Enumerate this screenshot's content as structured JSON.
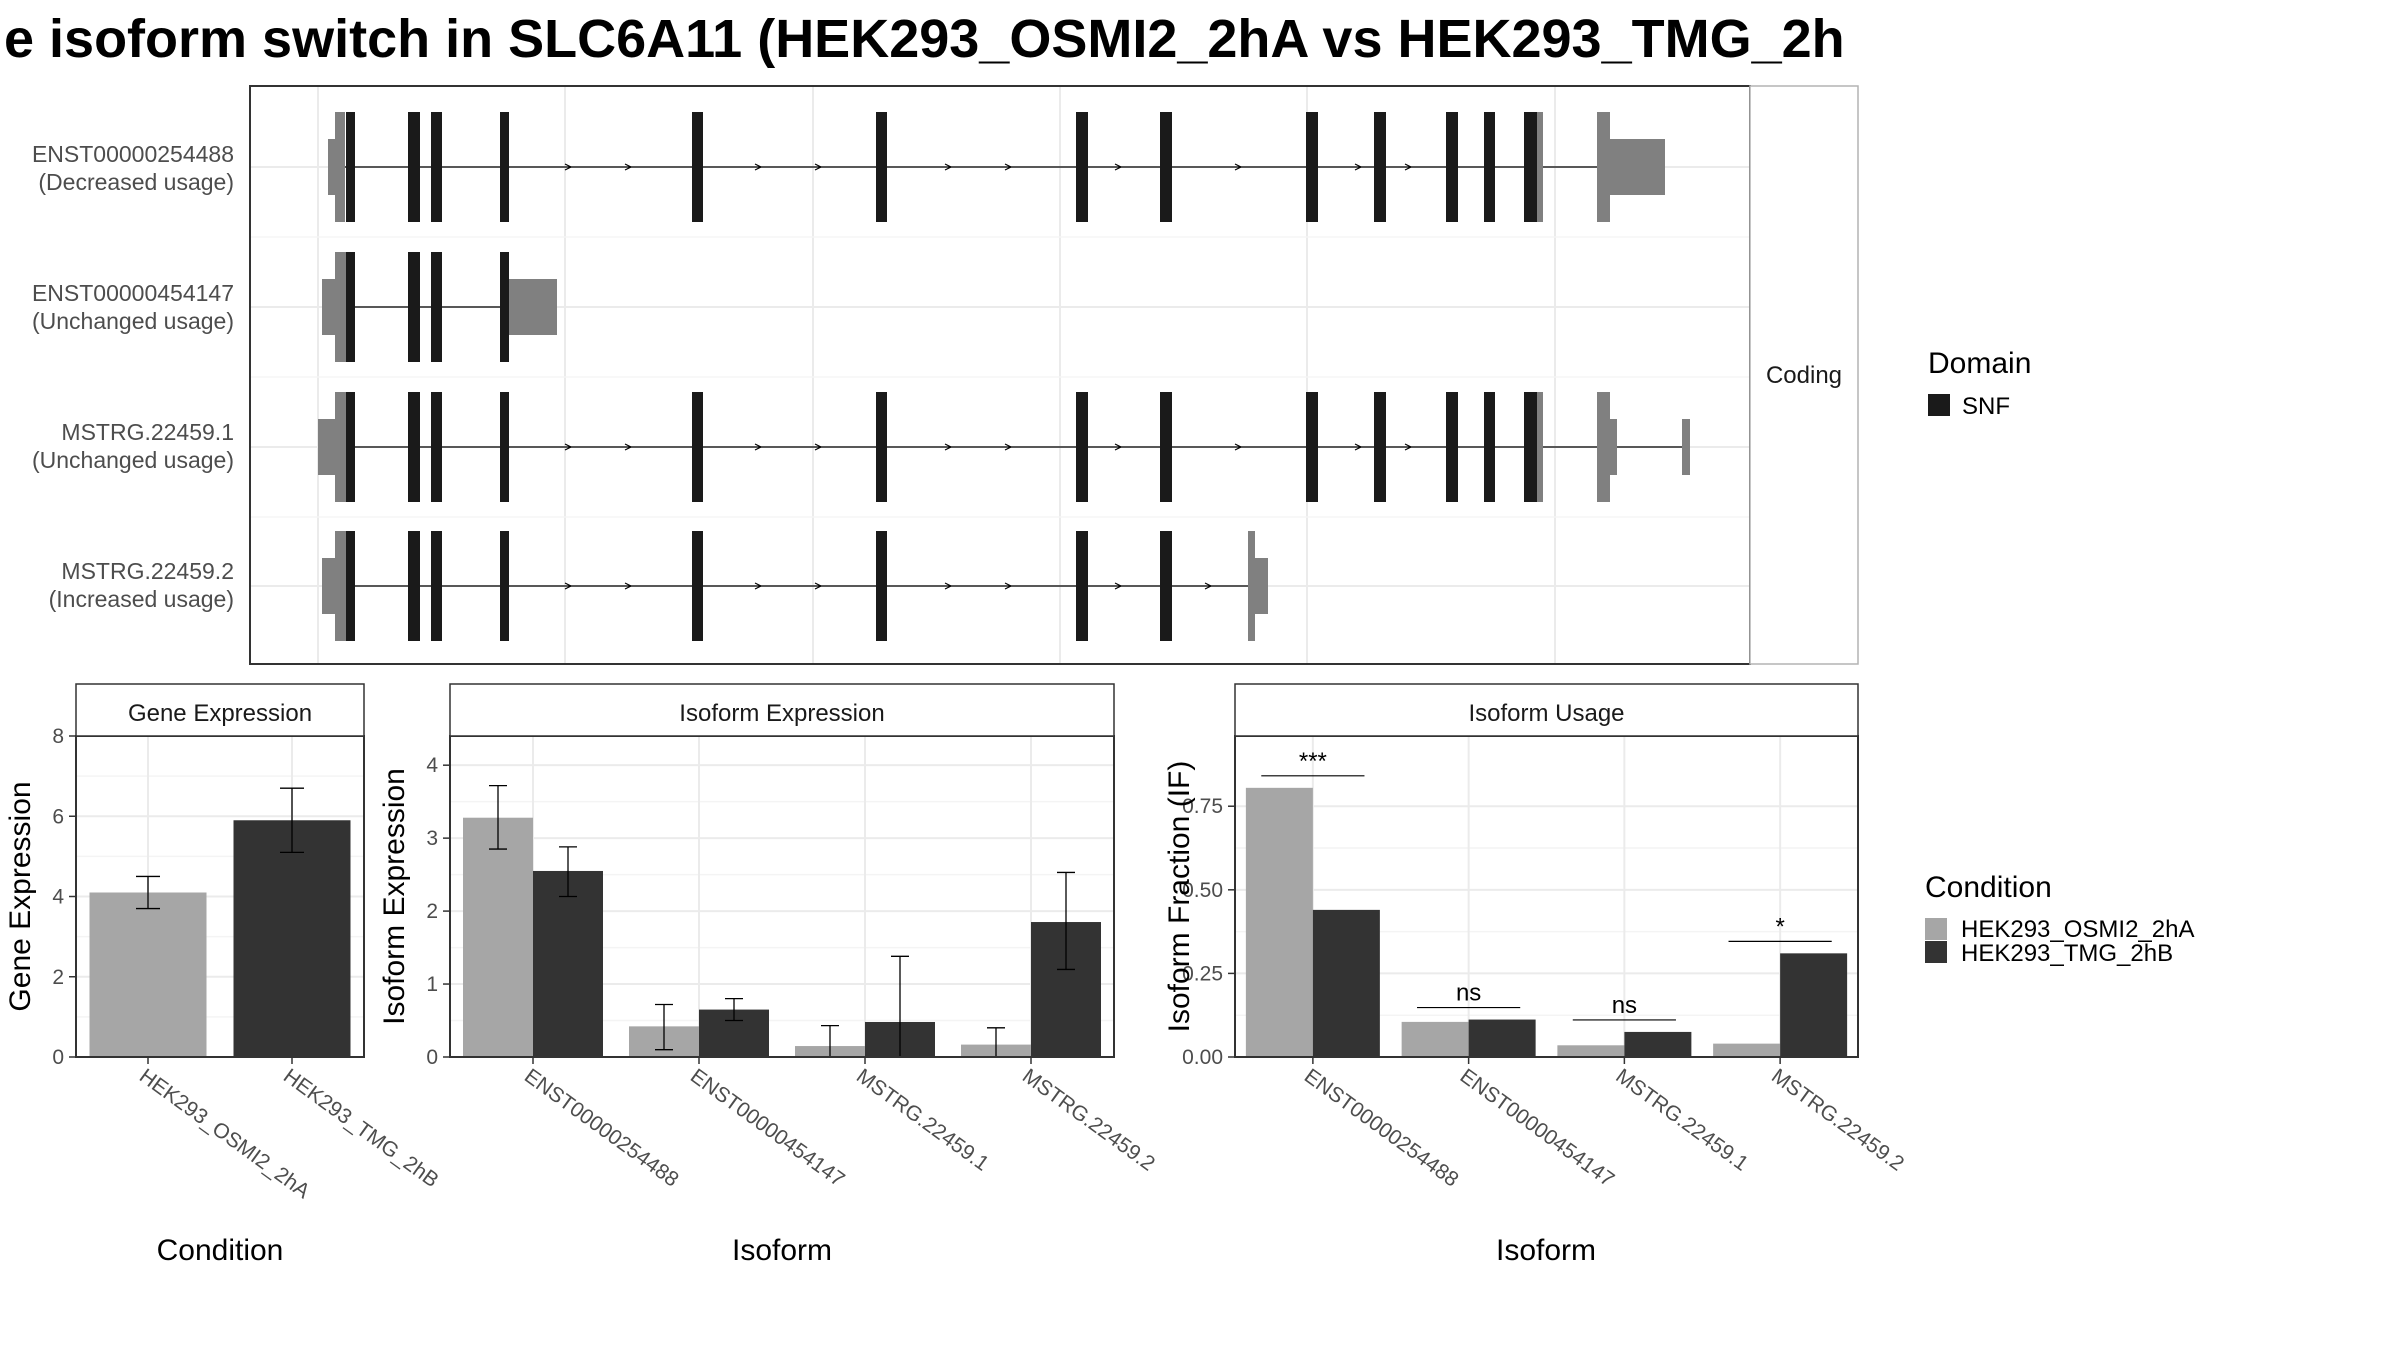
{
  "title": "e isoform switch in SLC6A11 (HEK293_OSMI2_2hA vs HEK293_TMG_2h",
  "colors": {
    "exon_domain": "#1a1a1a",
    "exon_utr": "#808080",
    "intron": "#000000",
    "cond1": "#a6a6a6",
    "cond2": "#333333",
    "grid": "#ebebeb",
    "strip_bg": "#ffffff",
    "panel_border": "#333333"
  },
  "structure": {
    "strip_label": "Coding",
    "transcripts": [
      {
        "id": "ENST00000254488",
        "usage": "(Decreased usage)"
      },
      {
        "id": "ENST00000454147",
        "usage": "(Unchanged usage)"
      },
      {
        "id": "MSTRG.22459.1",
        "usage": "(Unchanged usage)"
      },
      {
        "id": "MSTRG.22459.2",
        "usage": "(Increased usage)"
      }
    ]
  },
  "legend_domain": {
    "title": "Domain",
    "items": [
      {
        "label": "SNF",
        "color": "#1a1a1a"
      }
    ]
  },
  "legend_condition": {
    "title": "Condition",
    "items": [
      {
        "label": "HEK293_OSMI2_2hA",
        "color": "#a6a6a6"
      },
      {
        "label": "HEK293_TMG_2hB",
        "color": "#333333"
      }
    ]
  },
  "chart_data": [
    {
      "type": "bar",
      "panel": "Gene Expression",
      "xlabel": "Condition",
      "ylabel": "Gene Expression",
      "categories": [
        "HEK293_OSMI2_2hA",
        "HEK293_TMG_2hB"
      ],
      "values": [
        4.1,
        5.9
      ],
      "errors": [
        [
          3.7,
          4.5
        ],
        [
          5.1,
          6.7
        ]
      ],
      "ylim": [
        0,
        8
      ],
      "yticks": [
        "0",
        "2",
        "4",
        "6",
        "8"
      ],
      "ytick_values": [
        0,
        2,
        4,
        6,
        8
      ],
      "grid": true
    },
    {
      "type": "bar",
      "panel": "Isoform Expression",
      "xlabel": "Isoform",
      "ylabel": "Isoform Expression",
      "categories": [
        "ENST00000254488",
        "ENST00000454147",
        "MSTRG.22459.1",
        "MSTRG.22459.2"
      ],
      "series": [
        {
          "name": "HEK293_OSMI2_2hA",
          "values": [
            3.28,
            0.42,
            0.15,
            0.17
          ],
          "errors": [
            [
              2.85,
              3.72
            ],
            [
              0.1,
              0.72
            ],
            [
              0.0,
              0.43
            ],
            [
              0.0,
              0.4
            ]
          ]
        },
        {
          "name": "HEK293_TMG_2hB",
          "values": [
            2.55,
            0.65,
            0.48,
            1.85
          ],
          "errors": [
            [
              2.2,
              2.88
            ],
            [
              0.5,
              0.8
            ],
            [
              0.0,
              1.38
            ],
            [
              1.2,
              2.53
            ]
          ]
        }
      ],
      "ylim": [
        0,
        4.4
      ],
      "yticks": [
        "0",
        "1",
        "2",
        "3",
        "4"
      ],
      "ytick_values": [
        0,
        1,
        2,
        3,
        4
      ],
      "grid": true
    },
    {
      "type": "bar",
      "panel": "Isoform Usage",
      "xlabel": "Isoform",
      "ylabel": "Isoform Fraction (IF)",
      "categories": [
        "ENST00000254488",
        "ENST00000454147",
        "MSTRG.22459.1",
        "MSTRG.22459.2"
      ],
      "series": [
        {
          "name": "HEK293_OSMI2_2hA",
          "values": [
            0.805,
            0.105,
            0.035,
            0.04
          ]
        },
        {
          "name": "HEK293_TMG_2hB",
          "values": [
            0.44,
            0.112,
            0.075,
            0.31
          ]
        }
      ],
      "significance": [
        "***",
        "ns",
        "ns",
        "*"
      ],
      "ylim": [
        0,
        0.96
      ],
      "yticks": [
        "0.00",
        "0.25",
        "0.50",
        "0.75"
      ],
      "ytick_values": [
        0,
        0.25,
        0.5,
        0.75
      ],
      "grid": true
    }
  ]
}
